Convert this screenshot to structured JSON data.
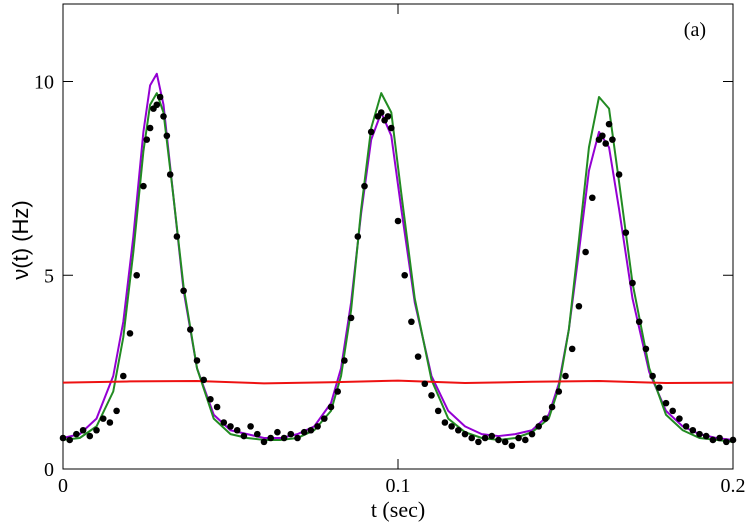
{
  "chart_data": {
    "type": "line",
    "title": "",
    "annotation": "(a)",
    "xlabel": "t (sec)",
    "ylabel": "ν(t)  (Hz)",
    "xlim": [
      0,
      0.2
    ],
    "ylim": [
      0,
      12
    ],
    "x_ticks": [
      0,
      0.1,
      0.2
    ],
    "x_tick_labels": [
      "0",
      "0.1",
      "0.2"
    ],
    "y_ticks": [
      0,
      5,
      10
    ],
    "y_tick_labels": [
      "0",
      "5",
      "10"
    ],
    "grid": false,
    "legend": "none",
    "series": [
      {
        "style": "line",
        "color": "#9400d3",
        "x": [
          0,
          0.005,
          0.01,
          0.015,
          0.018,
          0.021,
          0.024,
          0.026,
          0.028,
          0.03,
          0.033,
          0.036,
          0.04,
          0.045,
          0.05,
          0.055,
          0.06,
          0.065,
          0.07,
          0.075,
          0.08,
          0.083,
          0.086,
          0.089,
          0.092,
          0.095,
          0.098,
          0.101,
          0.105,
          0.11,
          0.115,
          0.12,
          0.125,
          0.13,
          0.135,
          0.14,
          0.145,
          0.148,
          0.151,
          0.154,
          0.157,
          0.16,
          0.163,
          0.166,
          0.17,
          0.175,
          0.18,
          0.185,
          0.19,
          0.195,
          0.2
        ],
        "y": [
          0.8,
          0.9,
          1.3,
          2.4,
          3.8,
          6.0,
          8.7,
          9.9,
          10.2,
          9.4,
          7.0,
          4.6,
          2.6,
          1.4,
          1.0,
          0.9,
          0.8,
          0.8,
          0.9,
          1.1,
          1.7,
          2.6,
          4.3,
          6.6,
          8.5,
          9.2,
          8.6,
          6.7,
          4.3,
          2.4,
          1.5,
          1.1,
          0.9,
          0.85,
          0.9,
          1.0,
          1.4,
          2.2,
          3.6,
          5.6,
          7.7,
          8.7,
          8.3,
          6.7,
          4.4,
          2.5,
          1.5,
          1.1,
          0.9,
          0.8,
          0.75
        ]
      },
      {
        "style": "line",
        "color": "#228b22",
        "x": [
          0,
          0.005,
          0.01,
          0.015,
          0.018,
          0.021,
          0.024,
          0.026,
          0.028,
          0.03,
          0.033,
          0.036,
          0.04,
          0.045,
          0.05,
          0.055,
          0.06,
          0.065,
          0.07,
          0.075,
          0.08,
          0.083,
          0.086,
          0.089,
          0.092,
          0.095,
          0.098,
          0.101,
          0.105,
          0.11,
          0.115,
          0.12,
          0.125,
          0.13,
          0.135,
          0.14,
          0.145,
          0.148,
          0.151,
          0.154,
          0.157,
          0.16,
          0.163,
          0.166,
          0.17,
          0.175,
          0.18,
          0.185,
          0.19,
          0.195,
          0.2
        ],
        "y": [
          0.75,
          0.8,
          1.1,
          2.0,
          3.4,
          5.6,
          8.2,
          9.4,
          9.7,
          9.2,
          7.0,
          4.7,
          2.6,
          1.3,
          0.9,
          0.8,
          0.75,
          0.75,
          0.8,
          1.0,
          1.5,
          2.4,
          4.1,
          6.7,
          8.8,
          9.7,
          9.2,
          7.1,
          4.4,
          2.3,
          1.3,
          0.95,
          0.8,
          0.75,
          0.8,
          0.95,
          1.3,
          2.1,
          3.6,
          5.9,
          8.3,
          9.6,
          9.3,
          7.4,
          4.8,
          2.6,
          1.4,
          1.0,
          0.8,
          0.75,
          0.7
        ]
      },
      {
        "style": "line",
        "color": "#ee1111",
        "x": [
          0,
          0.02,
          0.04,
          0.06,
          0.08,
          0.1,
          0.12,
          0.14,
          0.16,
          0.18,
          0.2
        ],
        "y": [
          2.23,
          2.26,
          2.27,
          2.21,
          2.24,
          2.28,
          2.22,
          2.25,
          2.27,
          2.22,
          2.23
        ]
      },
      {
        "style": "scatter",
        "color": "#000000",
        "x": [
          0,
          0.002,
          0.004,
          0.006,
          0.008,
          0.01,
          0.012,
          0.014,
          0.016,
          0.018,
          0.02,
          0.022,
          0.024,
          0.025,
          0.026,
          0.027,
          0.028,
          0.029,
          0.03,
          0.031,
          0.032,
          0.034,
          0.036,
          0.038,
          0.04,
          0.042,
          0.044,
          0.046,
          0.048,
          0.05,
          0.052,
          0.054,
          0.056,
          0.058,
          0.06,
          0.062,
          0.064,
          0.066,
          0.068,
          0.07,
          0.072,
          0.074,
          0.076,
          0.078,
          0.08,
          0.082,
          0.084,
          0.086,
          0.088,
          0.09,
          0.092,
          0.094,
          0.095,
          0.096,
          0.097,
          0.098,
          0.1,
          0.102,
          0.104,
          0.106,
          0.108,
          0.11,
          0.112,
          0.114,
          0.116,
          0.118,
          0.12,
          0.122,
          0.124,
          0.126,
          0.128,
          0.13,
          0.132,
          0.134,
          0.136,
          0.138,
          0.14,
          0.142,
          0.144,
          0.146,
          0.148,
          0.15,
          0.152,
          0.154,
          0.156,
          0.158,
          0.16,
          0.161,
          0.162,
          0.163,
          0.164,
          0.166,
          0.168,
          0.17,
          0.172,
          0.174,
          0.176,
          0.178,
          0.18,
          0.182,
          0.184,
          0.186,
          0.188,
          0.19,
          0.192,
          0.194,
          0.196,
          0.198,
          0.2
        ],
        "y": [
          0.8,
          0.75,
          0.9,
          1.0,
          0.85,
          1.0,
          1.3,
          1.2,
          1.5,
          2.4,
          3.5,
          5.0,
          7.3,
          8.5,
          8.8,
          9.3,
          9.4,
          9.6,
          9.1,
          8.6,
          7.6,
          6.0,
          4.6,
          3.6,
          2.8,
          2.3,
          1.8,
          1.6,
          1.2,
          1.1,
          1.0,
          0.85,
          1.1,
          0.9,
          0.7,
          0.8,
          0.95,
          0.8,
          0.9,
          0.8,
          0.95,
          1.0,
          1.1,
          1.3,
          1.6,
          2.0,
          2.8,
          3.9,
          6.0,
          7.3,
          8.7,
          9.1,
          9.2,
          9.0,
          9.1,
          8.8,
          6.4,
          5.0,
          3.8,
          2.9,
          2.2,
          1.9,
          1.5,
          1.2,
          1.1,
          1.0,
          0.9,
          0.8,
          0.7,
          0.8,
          0.85,
          0.75,
          0.7,
          0.6,
          0.8,
          0.75,
          0.9,
          1.1,
          1.3,
          1.6,
          2.0,
          2.4,
          3.1,
          4.2,
          5.6,
          7.0,
          8.5,
          8.6,
          8.4,
          8.9,
          8.5,
          7.6,
          6.1,
          4.8,
          3.8,
          3.1,
          2.4,
          2.1,
          1.7,
          1.5,
          1.3,
          1.1,
          1.0,
          0.9,
          0.85,
          0.75,
          0.8,
          0.7,
          0.75
        ]
      }
    ]
  }
}
